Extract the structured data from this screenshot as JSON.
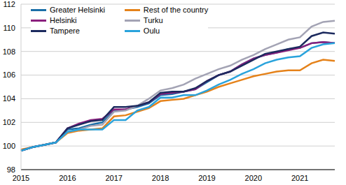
{
  "chart_data": {
    "type": "line",
    "categories": [
      "2015",
      null,
      null,
      null,
      "2016",
      null,
      null,
      null,
      "2017",
      null,
      null,
      null,
      "2018",
      null,
      null,
      null,
      "2019",
      null,
      null,
      null,
      "2020",
      null,
      null,
      null,
      "2021",
      null,
      null,
      null
    ],
    "series": [
      {
        "name": "Greater Helsinki",
        "color": "#1a6fa8",
        "values": [
          99.6,
          99.9,
          100.1,
          100.3,
          101.4,
          101.5,
          101.8,
          102.0,
          103.0,
          103.1,
          103.3,
          103.6,
          104.3,
          104.4,
          104.6,
          104.8,
          105.4,
          106.0,
          106.3,
          106.9,
          107.4,
          107.7,
          107.9,
          108.2,
          108.3,
          108.7,
          108.8,
          108.7
        ]
      },
      {
        "name": "Rest of the country",
        "color": "#e5821a",
        "values": [
          99.7,
          99.9,
          100.1,
          100.3,
          101.1,
          101.3,
          101.4,
          101.5,
          102.5,
          102.6,
          102.9,
          103.2,
          103.8,
          103.9,
          104.0,
          104.3,
          104.6,
          105.0,
          105.3,
          105.6,
          105.9,
          106.1,
          106.3,
          106.4,
          106.4,
          107.0,
          107.3,
          107.2
        ]
      },
      {
        "name": "Helsinki",
        "color": "#8a1f7d",
        "values": [
          99.6,
          99.9,
          100.1,
          100.3,
          101.5,
          101.9,
          102.2,
          102.3,
          103.1,
          103.1,
          103.4,
          103.7,
          104.4,
          104.5,
          104.6,
          104.8,
          105.5,
          106.0,
          106.3,
          106.9,
          107.4,
          107.7,
          107.9,
          108.1,
          108.3,
          108.7,
          108.8,
          108.7
        ]
      },
      {
        "name": "Turku",
        "color": "#a3a3b4",
        "values": [
          99.6,
          99.9,
          100.1,
          100.3,
          101.2,
          101.4,
          101.7,
          101.8,
          102.9,
          103.0,
          103.4,
          104.0,
          104.7,
          104.9,
          105.2,
          105.7,
          106.1,
          106.5,
          106.8,
          107.3,
          107.7,
          108.2,
          108.6,
          109.0,
          109.2,
          110.1,
          110.5,
          110.6
        ]
      },
      {
        "name": "Tampere",
        "color": "#1c2a5e",
        "values": [
          99.6,
          99.9,
          100.1,
          100.3,
          101.5,
          101.8,
          102.1,
          102.2,
          103.3,
          103.3,
          103.4,
          103.7,
          104.5,
          104.6,
          104.6,
          104.9,
          105.5,
          106.0,
          106.3,
          106.8,
          107.3,
          107.8,
          108.0,
          108.2,
          108.4,
          109.3,
          109.6,
          109.5
        ]
      },
      {
        "name": "Oulu",
        "color": "#29a3dc",
        "values": [
          99.6,
          99.9,
          100.1,
          100.3,
          101.2,
          101.4,
          101.4,
          101.4,
          102.2,
          102.2,
          103.0,
          103.3,
          104.1,
          104.1,
          104.3,
          104.3,
          104.7,
          105.2,
          105.6,
          106.1,
          106.5,
          107.0,
          107.3,
          107.5,
          107.6,
          108.3,
          108.6,
          108.7
        ]
      }
    ],
    "ylim": [
      98,
      112
    ],
    "yticks": [
      98,
      100,
      102,
      104,
      106,
      108,
      110,
      112
    ],
    "grid": true,
    "legend": "upper left"
  }
}
